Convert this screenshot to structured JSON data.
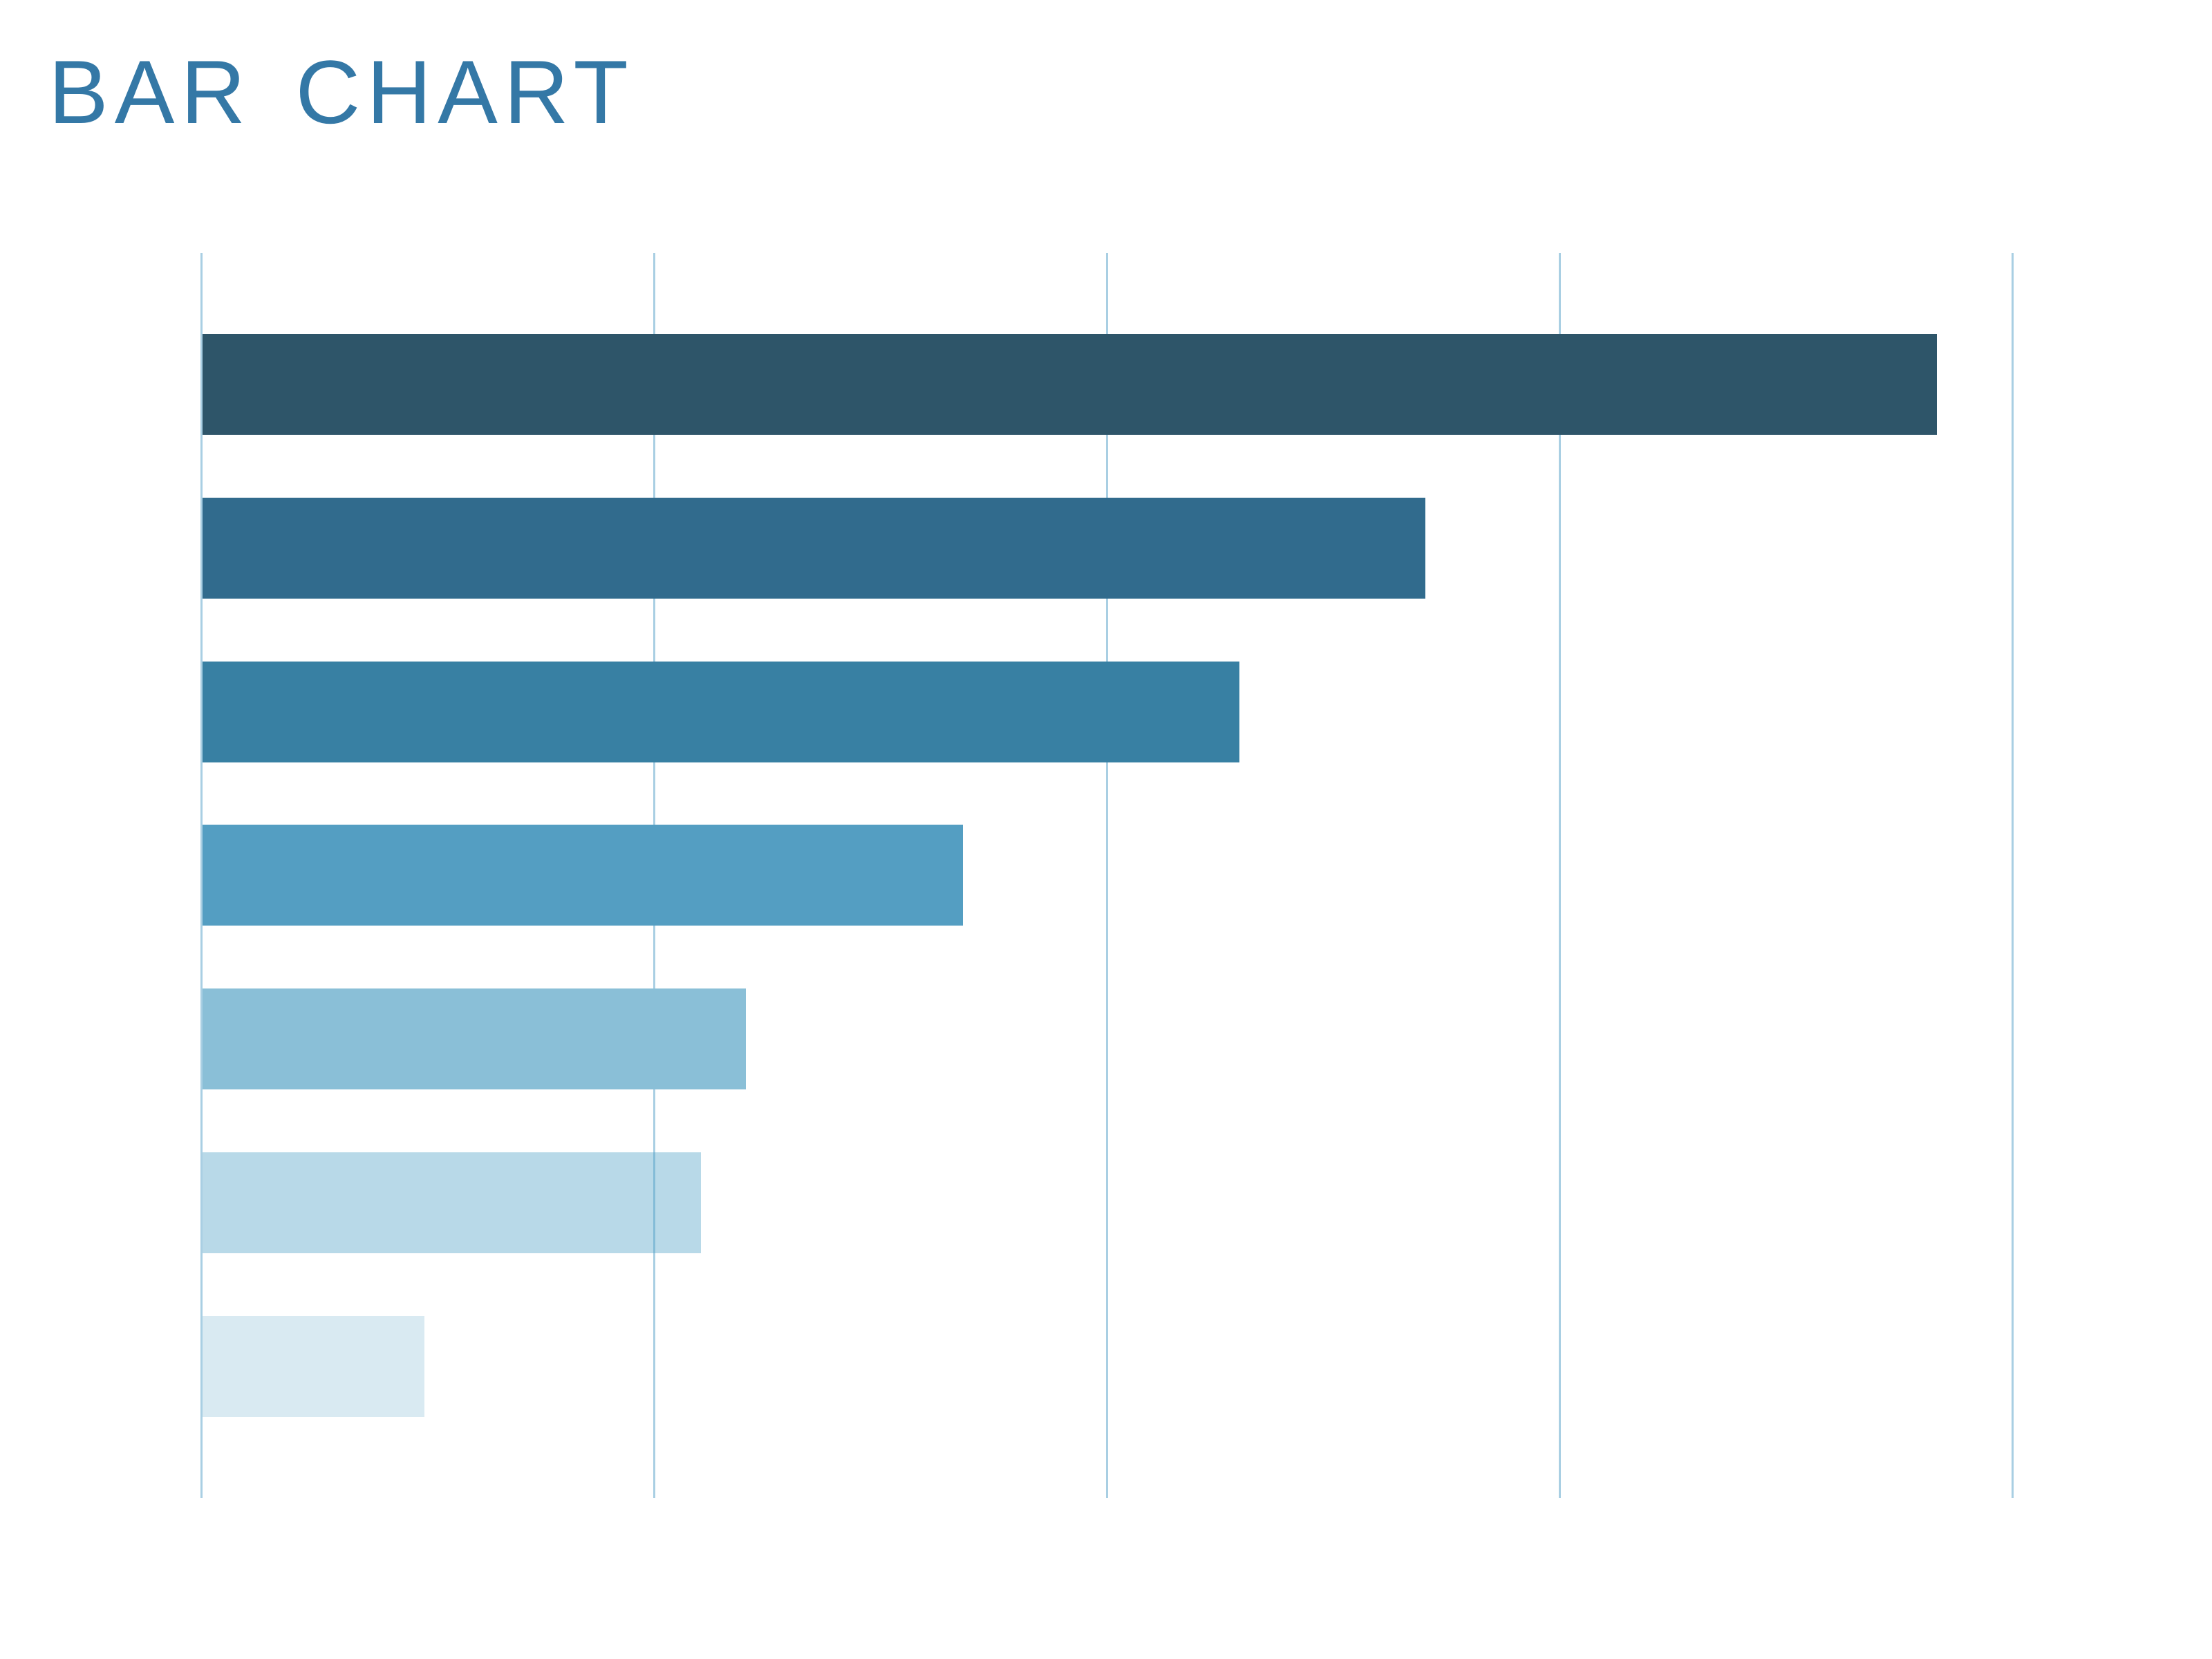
{
  "header": {
    "title": "BAR CHART",
    "title_color": "#3478A6"
  },
  "chart_data": {
    "type": "bar",
    "orientation": "horizontal",
    "title": "BAR CHART",
    "xlabel": "",
    "ylabel": "",
    "xlim": [
      0,
      4
    ],
    "grid": true,
    "gridline_positions": [
      0,
      1,
      2,
      3,
      4
    ],
    "gridline_color": "#A9CFE3",
    "legend": "none",
    "tick_labels_visible": false,
    "categories": [
      "",
      "",
      "",
      "",
      "",
      "",
      ""
    ],
    "values": [
      3.83,
      2.7,
      2.29,
      1.68,
      1.2,
      1.1,
      0.49
    ],
    "bar_colors": [
      "#2E5569",
      "#316B8D",
      "#3880A3",
      "#549EC2",
      "#8ABFD7",
      "rgba(78,160,198,0.4)",
      "#D9EAF2"
    ]
  }
}
